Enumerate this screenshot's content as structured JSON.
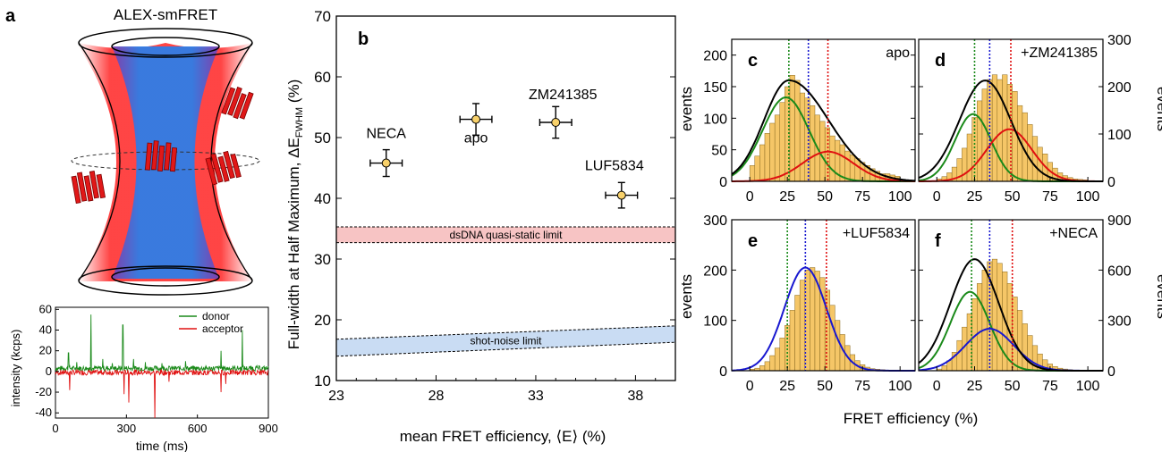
{
  "colors": {
    "bar_fill": "#f5c667",
    "donor": "#1a8a1a",
    "acceptor": "#e01010",
    "blue_fit": "#1818d0",
    "dsdna_band": "#f7c4c4",
    "shot_band": "#c9dcf3",
    "marker": "#f8d16a",
    "cone_red": "#ff2020",
    "cone_blue": "#3a7fe0"
  },
  "panel_a": {
    "letter": "a",
    "title": "ALEX-smFRET",
    "trace": {
      "ylabel": "intensity (kcps)",
      "xlabel": "time (ms)",
      "xticks": [
        "0",
        "300",
        "600",
        "900"
      ],
      "yticks": [
        "60",
        "40",
        "20",
        "0",
        "-20",
        "-40"
      ],
      "legend": [
        "donor",
        "acceptor"
      ]
    }
  },
  "chart_data": [
    {
      "panel": "b",
      "type": "scatter",
      "xlabel": "mean FRET efficiency, ⟨E⟩ (%)",
      "ylabel_main": "Full-width at Half Maximum, ΔE",
      "ylabel_sub": "FWHM",
      "ylabel_tail": " (%)",
      "xlim": [
        23,
        40
      ],
      "ylim": [
        10,
        70
      ],
      "xticks": [
        "23",
        "28",
        "33",
        "38"
      ],
      "yticks": [
        "10",
        "20",
        "30",
        "40",
        "50",
        "60",
        "70"
      ],
      "points": [
        {
          "label": "NECA",
          "x": 25.5,
          "y": 45.8,
          "xerr": 0.8,
          "yerr": 2.2
        },
        {
          "label": "apo",
          "x": 30.0,
          "y": 53.0,
          "xerr": 0.8,
          "yerr": 2.6
        },
        {
          "label": "ZM241385",
          "x": 34.0,
          "y": 52.5,
          "xerr": 0.8,
          "yerr": 2.6
        },
        {
          "label": "LUF5834",
          "x": 37.3,
          "y": 40.5,
          "xerr": 0.8,
          "yerr": 2.1
        }
      ],
      "bands": [
        {
          "label": "dsDNA quasi-static limit",
          "lower": [
            32.7,
            32.7
          ],
          "upper": [
            35.3,
            35.3
          ]
        },
        {
          "label": "shot-noise limit",
          "lower": [
            14.0,
            16.3
          ],
          "upper": [
            16.8,
            19.0
          ]
        }
      ]
    },
    {
      "panel": "c",
      "type": "bar",
      "tag": "apo",
      "ylim": [
        0,
        225
      ],
      "yticks": [
        "0",
        "50",
        "100",
        "150",
        "200"
      ],
      "ytick_side": "left",
      "values": [
        25,
        40,
        58,
        76,
        92,
        105,
        125,
        150,
        168,
        160,
        140,
        132,
        120,
        105,
        95,
        85,
        72,
        65,
        58,
        48,
        42,
        36,
        30,
        25,
        20,
        16,
        12,
        12,
        10,
        8
      ],
      "fits": [
        {
          "color": "donor",
          "mu": 24,
          "sigma": 15.5,
          "amp": 133
        },
        {
          "color": "acceptor",
          "mu": 52,
          "sigma": 17,
          "amp": 47
        },
        {
          "color": "total",
          "mu": 26,
          "sigma": 16.5,
          "amp": 160,
          "skew": true
        }
      ],
      "vlines": [
        {
          "x": 26,
          "color": "donor"
        },
        {
          "x": 39,
          "color": "blue_fit"
        },
        {
          "x": 52,
          "color": "acceptor"
        }
      ]
    },
    {
      "panel": "d",
      "type": "bar",
      "tag": "+ZM241385",
      "ylim": [
        0,
        300
      ],
      "yticks": [
        "0",
        "100",
        "200",
        "300"
      ],
      "ytick_side": "right",
      "values": [
        5,
        10,
        18,
        30,
        48,
        70,
        100,
        135,
        170,
        195,
        215,
        225,
        215,
        225,
        205,
        190,
        160,
        145,
        120,
        95,
        72,
        58,
        40,
        28,
        18,
        12,
        8,
        5,
        4,
        3
      ],
      "fits": [
        {
          "color": "donor",
          "mu": 24,
          "sigma": 12,
          "amp": 142
        },
        {
          "color": "acceptor",
          "mu": 48,
          "sigma": 15,
          "amp": 110
        },
        {
          "color": "total",
          "mu": 32,
          "sigma": 17,
          "amp": 213
        }
      ],
      "vlines": [
        {
          "x": 25,
          "color": "donor"
        },
        {
          "x": 35,
          "color": "blue_fit"
        },
        {
          "x": 49,
          "color": "acceptor"
        }
      ]
    },
    {
      "panel": "e",
      "type": "bar",
      "tag": "+LUF5834",
      "ylim": [
        0,
        300
      ],
      "yticks": [
        "0",
        "100",
        "200",
        "300"
      ],
      "ytick_side": "left",
      "values": [
        3,
        5,
        10,
        18,
        30,
        45,
        65,
        90,
        120,
        150,
        180,
        200,
        205,
        198,
        185,
        160,
        130,
        100,
        72,
        50,
        32,
        20,
        12,
        7,
        4,
        3,
        2,
        1,
        1,
        1
      ],
      "fits": [
        {
          "color": "blue_fit",
          "mu": 37,
          "sigma": 14,
          "amp": 205
        }
      ],
      "vlines": [
        {
          "x": 25,
          "color": "donor"
        },
        {
          "x": 37,
          "color": "blue_fit"
        },
        {
          "x": 51,
          "color": "acceptor"
        }
      ]
    },
    {
      "panel": "f",
      "type": "bar",
      "tag": "+NECA",
      "ylim": [
        0,
        900
      ],
      "yticks": [
        "0",
        "300",
        "600",
        "900"
      ],
      "ytick_side": "right",
      "values": [
        10,
        30,
        60,
        110,
        180,
        260,
        340,
        430,
        520,
        600,
        650,
        665,
        640,
        590,
        520,
        440,
        360,
        280,
        210,
        150,
        100,
        65,
        40,
        25,
        15,
        10,
        6,
        4,
        3,
        2
      ],
      "fits": [
        {
          "color": "donor",
          "mu": 22,
          "sigma": 13,
          "amp": 470
        },
        {
          "color": "blue_fit",
          "mu": 35,
          "sigma": 16,
          "amp": 250
        },
        {
          "color": "total",
          "mu": 25,
          "sigma": 16,
          "amp": 665
        }
      ],
      "vlines": [
        {
          "x": 23,
          "color": "donor"
        },
        {
          "x": 35,
          "color": "blue_fit"
        },
        {
          "x": 50,
          "color": "acceptor"
        }
      ]
    }
  ],
  "histograms_common": {
    "xlim": [
      -12,
      110
    ],
    "xticks": [
      "0",
      "25",
      "50",
      "75",
      "100"
    ],
    "ylabel": "events",
    "xlabel": "FRET efficiency (%)"
  }
}
